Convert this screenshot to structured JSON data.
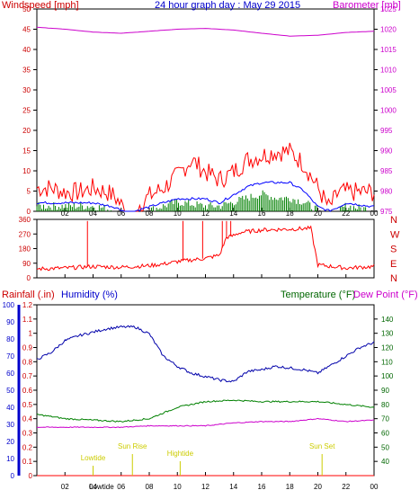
{
  "header": {
    "left_label": "Windspeed [mph]",
    "title": "24 hour graph day : May 29 2015",
    "right_label": "Barometer [mb]"
  },
  "bottom_header": {
    "rainfall": "Rainfall (.in)",
    "humidity": "Humidity (%)",
    "temperature": "Temperature (°F)",
    "dewpoint": "Dew Point (°F)"
  },
  "colors": {
    "wind_gust": "#ff0000",
    "wind_avg": "#0000ff",
    "wind_speed": "#008000",
    "barometer": "#cc00cc",
    "direction": "#ff0000",
    "humidity": "#0000aa",
    "temperature": "#008000",
    "dewpoint": "#cc00cc",
    "rain": "#ff0000",
    "events": "#cccc00",
    "axis_red": "#cc0000",
    "axis_blue": "#0000cc",
    "axis_green": "#006600",
    "axis_magenta": "#cc00cc"
  },
  "chart_data": [
    {
      "type": "line",
      "name": "wind_barometer",
      "x_tick_labels": [
        "02",
        "04",
        "06",
        "08",
        "10",
        "12",
        "14",
        "16",
        "18",
        "20",
        "22",
        "00"
      ],
      "x_range_hours": [
        0,
        24
      ],
      "left_axis": {
        "label": "Windspeed [mph]",
        "range": [
          0,
          50
        ],
        "ticks": [
          0,
          5,
          10,
          15,
          20,
          25,
          30,
          35,
          40,
          45,
          50
        ]
      },
      "right_axis": {
        "label": "Barometer [mb]",
        "range": [
          975,
          1025
        ],
        "ticks": [
          975,
          980,
          985,
          990,
          995,
          1000,
          1005,
          1010,
          1015,
          1020,
          1025
        ]
      },
      "series": [
        {
          "name": "Wind gust",
          "hours": [
            0,
            1,
            2,
            3,
            4,
            5,
            5.5,
            6.2,
            7,
            8,
            9,
            10,
            11,
            12,
            13,
            14,
            15,
            16,
            17,
            18,
            19,
            20,
            20.8,
            21.5,
            22,
            23,
            24
          ],
          "values": [
            5,
            5,
            4,
            4,
            5,
            4,
            3,
            0,
            0,
            3,
            5,
            8,
            12,
            9,
            7,
            9,
            12,
            13,
            14,
            14,
            11,
            5,
            0,
            4,
            4,
            4,
            4
          ]
        },
        {
          "name": "Wind average",
          "hours": [
            0,
            2,
            4,
            5.5,
            6.2,
            7,
            8,
            10,
            12,
            13,
            14,
            15,
            16,
            17,
            18,
            19,
            20,
            20.8,
            21.5,
            22,
            24
          ],
          "values": [
            2,
            2,
            2,
            1,
            0,
            0,
            1,
            3,
            3,
            2,
            4,
            6,
            7,
            7,
            7,
            5,
            1,
            0,
            1,
            2,
            1
          ]
        },
        {
          "name": "Wind speed",
          "hours": [
            0,
            2,
            4,
            5.5,
            6.2,
            7,
            8,
            10,
            12,
            13,
            14,
            15,
            16,
            17,
            18,
            19,
            20,
            20.8,
            21.5,
            22,
            24
          ],
          "values": [
            1,
            1,
            1,
            0,
            0,
            0,
            0,
            2,
            1,
            1,
            2,
            3,
            4,
            3,
            3,
            2,
            0,
            0,
            0,
            1,
            0
          ]
        },
        {
          "name": "Barometer",
          "axis": "right",
          "hours": [
            0,
            2,
            4,
            6,
            8,
            10,
            12,
            14,
            16,
            18,
            20,
            22,
            24
          ],
          "values": [
            1020.5,
            1020,
            1019.3,
            1019,
            1019.5,
            1020,
            1020.2,
            1019.8,
            1019,
            1018.3,
            1018.5,
            1019.2,
            1019.5
          ]
        }
      ]
    },
    {
      "type": "scatter",
      "name": "wind_direction",
      "left_axis": {
        "range": [
          0,
          360
        ],
        "ticks": [
          0,
          90,
          180,
          270,
          360
        ]
      },
      "right_labels": [
        "N",
        "W",
        "S",
        "E",
        "N"
      ],
      "series": [
        {
          "name": "Wind direction",
          "hours": [
            0,
            2,
            4,
            6,
            8,
            9,
            10,
            11,
            12,
            13,
            13.5,
            14,
            14.5,
            16,
            18,
            19.5,
            20,
            22,
            24
          ],
          "values": [
            55,
            60,
            70,
            65,
            75,
            85,
            100,
            110,
            120,
            140,
            250,
            260,
            280,
            295,
            300,
            305,
            80,
            60,
            70
          ]
        }
      ]
    },
    {
      "type": "line",
      "name": "temp_humidity_rain",
      "rain_axis": {
        "label": "Rainfall (.in)",
        "range": [
          0,
          1.2
        ],
        "ticks": [
          0,
          0.1,
          0.2,
          0.3,
          0.4,
          0.5,
          0.6,
          0.7,
          0.8,
          0.9,
          1,
          1.1,
          1.2
        ]
      },
      "humidity_axis": {
        "label": "Humidity (%)",
        "range": [
          0,
          100
        ],
        "ticks": [
          0,
          10,
          20,
          30,
          40,
          50,
          60,
          70,
          80,
          90,
          100
        ]
      },
      "temperature_axis": {
        "label": "Temperature (°F)",
        "range": [
          30,
          150
        ],
        "ticks": [
          40,
          50,
          60,
          70,
          80,
          90,
          100,
          110,
          120,
          130,
          140
        ]
      },
      "series": [
        {
          "name": "Humidity",
          "hours": [
            0,
            1,
            2,
            3,
            4,
            5,
            6,
            7,
            8,
            9,
            10,
            11,
            12,
            13,
            14,
            15,
            16,
            17,
            18,
            19,
            20,
            21,
            22,
            23,
            24
          ],
          "values": [
            68,
            72,
            79,
            82,
            84,
            86,
            87,
            87,
            83,
            70,
            64,
            60,
            58,
            56,
            55,
            61,
            62,
            64,
            63,
            62,
            60,
            65,
            70,
            75,
            78
          ]
        },
        {
          "name": "Temperature",
          "hours": [
            0,
            2,
            4,
            6,
            8,
            10,
            12,
            14,
            16,
            18,
            20,
            22,
            24
          ],
          "values": [
            73,
            70,
            69,
            68,
            70,
            78,
            82,
            83,
            82,
            82,
            82,
            80,
            78
          ]
        },
        {
          "name": "Dew Point",
          "hours": [
            0,
            2,
            4,
            6,
            8,
            10,
            12,
            14,
            16,
            18,
            20,
            22,
            24
          ],
          "values": [
            64,
            64,
            64,
            64,
            65,
            65,
            65,
            67,
            68,
            68,
            70,
            68,
            69
          ]
        }
      ],
      "rain_total": 0,
      "events": [
        {
          "label": "Lowtide",
          "hour": 4
        },
        {
          "label": "Sun Rise",
          "hour": 6.8
        },
        {
          "label": "Hightide",
          "hour": 10.2
        },
        {
          "label": "Sun Set",
          "hour": 20.3
        }
      ],
      "x_tick_labels": [
        "02",
        "04",
        "06",
        "08",
        "10",
        "12",
        "14",
        "16",
        "18",
        "20",
        "22",
        "00"
      ],
      "bottom_row_labels": [
        "Lowtide"
      ]
    }
  ]
}
